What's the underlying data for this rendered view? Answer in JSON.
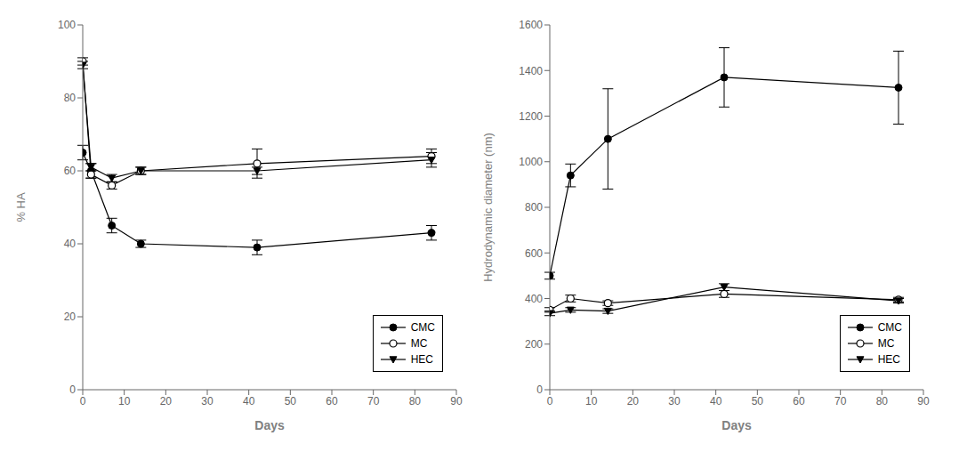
{
  "chart_data": [
    {
      "type": "line",
      "xlabel": "Days",
      "ylabel": "% HA",
      "x": [
        0,
        2,
        7,
        14,
        42,
        84
      ],
      "xlim": [
        0,
        90
      ],
      "ylim": [
        0,
        100
      ],
      "xticks": [
        0,
        10,
        20,
        30,
        40,
        50,
        60,
        70,
        80,
        90
      ],
      "yticks": [
        0,
        20,
        40,
        60,
        80,
        100
      ],
      "grid": false,
      "legend": "lower right",
      "series": [
        {
          "name": "CMC",
          "color": "black",
          "marker": "circle",
          "line_style": "solid",
          "values": [
            65,
            60,
            45,
            40,
            39,
            43
          ],
          "errors": [
            2,
            2,
            2,
            1,
            2,
            2
          ]
        },
        {
          "name": "MC",
          "color": "black",
          "marker": "open-circle",
          "line_style": "solid",
          "values": [
            90,
            59,
            56,
            60,
            62,
            64
          ],
          "errors": [
            1,
            1,
            1,
            1,
            4,
            2
          ]
        },
        {
          "name": "HEC",
          "color": "black",
          "marker": "triangle-down",
          "line_style": "solid",
          "values": [
            89,
            61,
            58,
            60,
            60,
            63
          ],
          "errors": [
            1,
            1,
            1,
            1,
            1,
            2
          ]
        }
      ]
    },
    {
      "type": "line",
      "xlabel": "Days",
      "ylabel": "Hydrodynamic diameter (nm)",
      "x": [
        0,
        5,
        14,
        42,
        84
      ],
      "xlim": [
        0,
        90
      ],
      "ylim": [
        0,
        1600
      ],
      "xticks": [
        0,
        10,
        20,
        30,
        40,
        50,
        60,
        70,
        80,
        90
      ],
      "yticks": [
        0,
        200,
        400,
        600,
        800,
        1000,
        1200,
        1400,
        1600
      ],
      "grid": false,
      "legend": "lower right",
      "series": [
        {
          "name": "CMC",
          "color": "black",
          "marker": "circle",
          "line_style": "solid",
          "values": [
            500,
            940,
            1100,
            1370,
            1325
          ],
          "errors": [
            15,
            50,
            220,
            130,
            160
          ]
        },
        {
          "name": "MC",
          "color": "black",
          "marker": "open-circle",
          "line_style": "solid",
          "values": [
            350,
            400,
            380,
            420,
            395
          ],
          "errors": [
            10,
            15,
            10,
            15,
            10
          ]
        },
        {
          "name": "HEC",
          "color": "black",
          "marker": "triangle-down",
          "line_style": "solid",
          "values": [
            335,
            350,
            345,
            450,
            390
          ],
          "errors": [
            10,
            10,
            10,
            15,
            10
          ]
        }
      ]
    }
  ]
}
